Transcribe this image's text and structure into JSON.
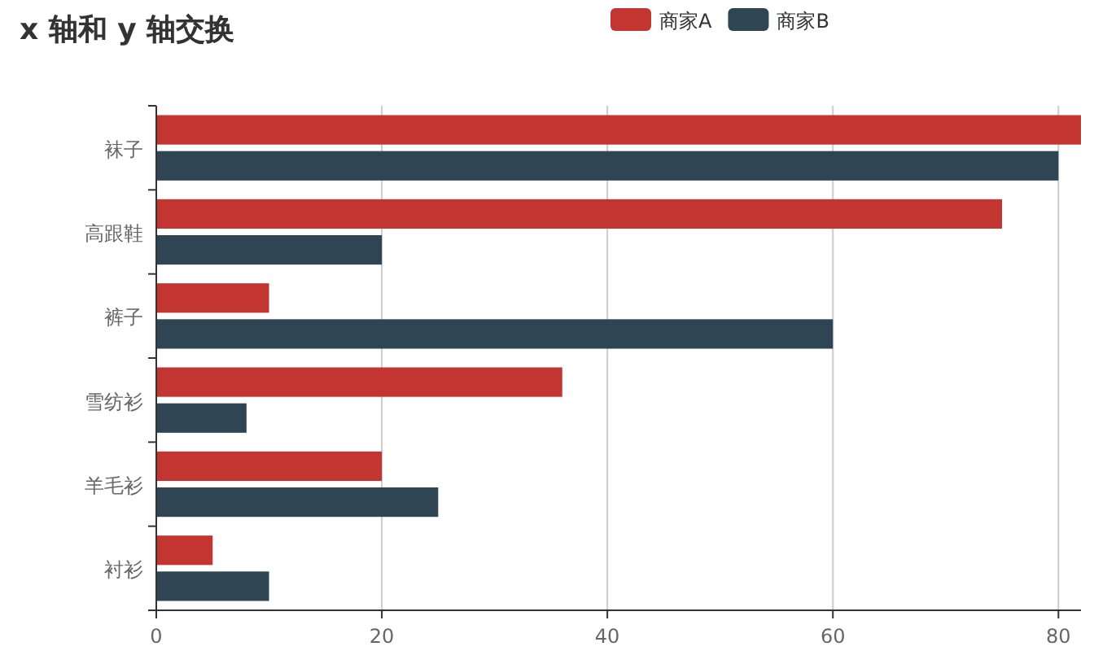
{
  "chart_data": {
    "type": "bar",
    "title": "x 轴和 y 轴交换",
    "orientation": "horizontal",
    "categories": [
      "袜子",
      "高跟鞋",
      "裤子",
      "雪纺衫",
      "羊毛衫",
      "衬衫"
    ],
    "series": [
      {
        "name": "商家A",
        "color": "#c23531",
        "values": [
          82,
          75,
          10,
          36,
          20,
          5
        ]
      },
      {
        "name": "商家B",
        "color": "#2f4554",
        "values": [
          80,
          20,
          60,
          8,
          25,
          10
        ]
      }
    ],
    "xlim": [
      0,
      82
    ],
    "xticks": [
      0,
      20,
      40,
      60,
      80
    ],
    "grid": "x",
    "legend": "top"
  }
}
